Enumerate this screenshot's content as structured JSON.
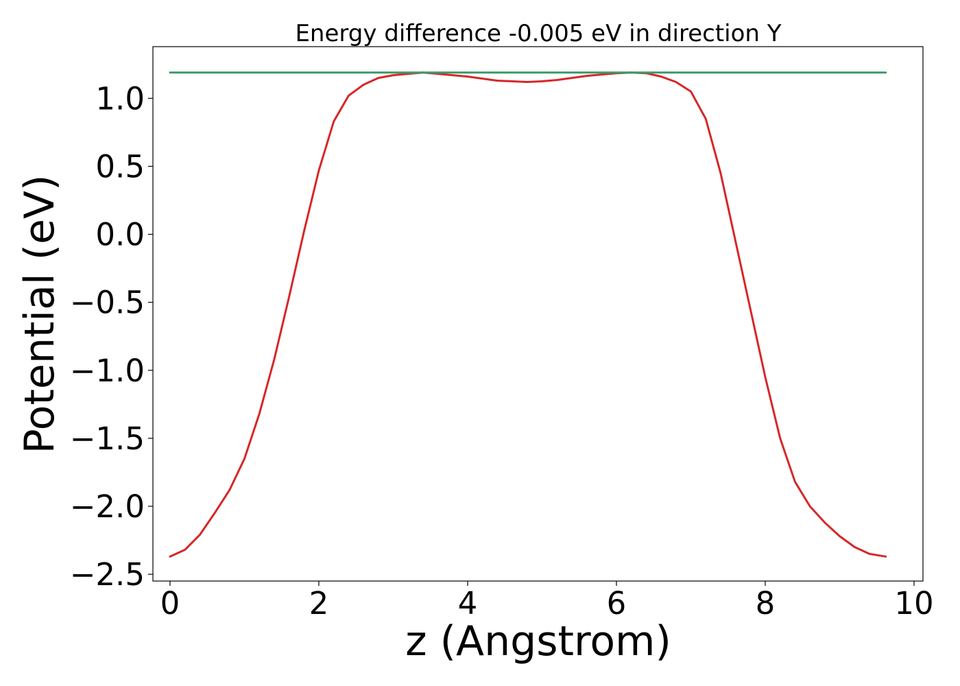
{
  "chart_data": {
    "type": "line",
    "title": "Energy difference -0.005 eV in direction Y",
    "xlabel": "z (Angstrom)",
    "ylabel": "Potential (eV)",
    "xlim": [
      -0.23,
      10.12
    ],
    "ylim": [
      -2.55,
      1.38
    ],
    "xticks": [
      0,
      2,
      4,
      6,
      8,
      10
    ],
    "xtick_labels": [
      "0",
      "2",
      "4",
      "6",
      "8",
      "10"
    ],
    "yticks": [
      1.0,
      0.5,
      0.0,
      -0.5,
      -1.0,
      -1.5,
      -2.0,
      -2.5
    ],
    "ytick_labels": [
      "1.0",
      "0.5",
      "0.0",
      "−0.5",
      "−1.0",
      "−1.5",
      "−2.0",
      "−2.5"
    ],
    "grid": false,
    "series": [
      {
        "color": "#d62728",
        "x": [
          0.0,
          0.2,
          0.4,
          0.6,
          0.8,
          1.0,
          1.2,
          1.4,
          1.6,
          1.8,
          2.0,
          2.2,
          2.4,
          2.6,
          2.8,
          3.0,
          3.2,
          3.4,
          3.6,
          3.8,
          4.0,
          4.2,
          4.4,
          4.6,
          4.8,
          5.0,
          5.2,
          5.4,
          5.6,
          5.8,
          6.0,
          6.2,
          6.4,
          6.6,
          6.8,
          7.0,
          7.2,
          7.4,
          7.6,
          7.8,
          8.0,
          8.2,
          8.4,
          8.6,
          8.8,
          9.0,
          9.2,
          9.4,
          9.62
        ],
        "y": [
          -2.37,
          -2.32,
          -2.21,
          -2.05,
          -1.88,
          -1.65,
          -1.32,
          -0.92,
          -0.46,
          0.02,
          0.47,
          0.83,
          1.02,
          1.1,
          1.15,
          1.17,
          1.18,
          1.19,
          1.18,
          1.17,
          1.16,
          1.145,
          1.13,
          1.125,
          1.12,
          1.125,
          1.135,
          1.15,
          1.165,
          1.175,
          1.185,
          1.19,
          1.185,
          1.16,
          1.12,
          1.05,
          0.85,
          0.45,
          -0.05,
          -0.55,
          -1.05,
          -1.5,
          -1.82,
          -2.0,
          -2.12,
          -2.22,
          -2.3,
          -2.35,
          -2.37
        ]
      },
      {
        "color": "#3a9a6a",
        "x": [
          0.0,
          9.62
        ],
        "y": [
          1.19,
          1.19
        ]
      }
    ]
  }
}
